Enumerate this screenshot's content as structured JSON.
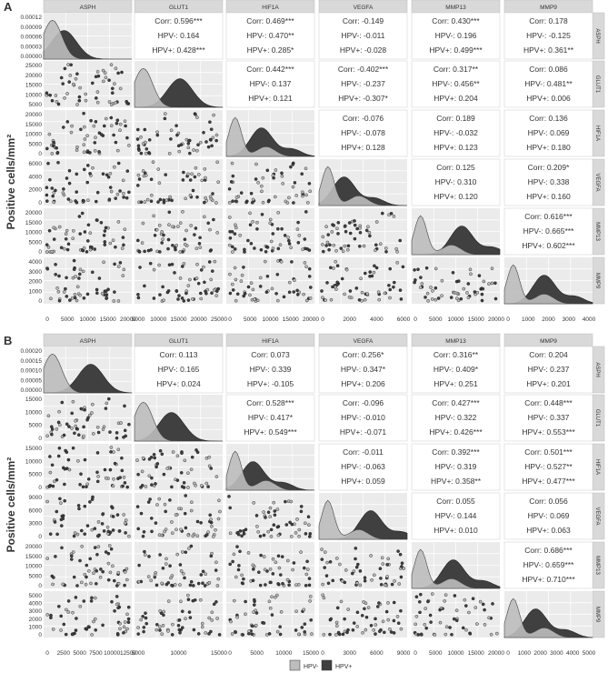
{
  "figure": {
    "ylabel": "Positive cells/mm²",
    "legend": [
      {
        "label": "HPV-",
        "color": "#bdbdbd"
      },
      {
        "label": "HPV+",
        "color": "#404040"
      }
    ]
  },
  "chart_data": [
    {
      "type": "pair_matrix",
      "panel_label": "A",
      "variables": [
        "ASPH",
        "GLUT1",
        "HIF1A",
        "VEGFA",
        "MMP13",
        "MMP9"
      ],
      "x_ticks": [
        [
          "0",
          "5000",
          "10000",
          "15000",
          "20000"
        ],
        [
          "5000",
          "10000",
          "15000",
          "20000",
          "25000"
        ],
        [
          "0",
          "5000",
          "10000",
          "15000",
          "20000"
        ],
        [
          "0",
          "2000",
          "4000",
          "6000"
        ],
        [
          "0",
          "5000",
          "10000",
          "15000",
          "20000"
        ],
        [
          "0",
          "1000",
          "2000",
          "3000",
          "4000"
        ]
      ],
      "y_ticks": [
        [
          "0.00000",
          "0.00003",
          "0.00006",
          "0.00009",
          "0.00012"
        ],
        [
          "5000",
          "10000",
          "15000",
          "20000",
          "25000"
        ],
        [
          "0",
          "5000",
          "10000",
          "15000",
          "20000"
        ],
        [
          "0",
          "2000",
          "4000",
          "6000"
        ],
        [
          "0",
          "5000",
          "10000",
          "15000",
          "20000"
        ],
        [
          "0",
          "1000",
          "2000",
          "3000",
          "4000"
        ]
      ],
      "correlations": [
        {
          "row": 0,
          "col": 1,
          "corr": "Corr: 0.596***",
          "neg": "HPV-: 0.164",
          "pos": "HPV+: 0.428***"
        },
        {
          "row": 0,
          "col": 2,
          "corr": "Corr: 0.469***",
          "neg": "HPV-: 0.470**",
          "pos": "HPV+: 0.285*"
        },
        {
          "row": 0,
          "col": 3,
          "corr": "Corr: -0.149",
          "neg": "HPV-: -0.011",
          "pos": "HPV+: -0.028"
        },
        {
          "row": 0,
          "col": 4,
          "corr": "Corr: 0.430***",
          "neg": "HPV-: 0.196",
          "pos": "HPV+: 0.499***"
        },
        {
          "row": 0,
          "col": 5,
          "corr": "Corr: 0.178",
          "neg": "HPV-: -0.125",
          "pos": "HPV+: 0.361**"
        },
        {
          "row": 1,
          "col": 2,
          "corr": "Corr: 0.442***",
          "neg": "HPV-: 0.137",
          "pos": "HPV+: 0.121"
        },
        {
          "row": 1,
          "col": 3,
          "corr": "Corr: -0.402***",
          "neg": "HPV-: -0.237",
          "pos": "HPV+: -0.307*"
        },
        {
          "row": 1,
          "col": 4,
          "corr": "Corr: 0.317**",
          "neg": "HPV-: 0.456**",
          "pos": "HPV+: 0.204"
        },
        {
          "row": 1,
          "col": 5,
          "corr": "Corr: 0.086",
          "neg": "HPV-: 0.481**",
          "pos": "HPV+: 0.006"
        },
        {
          "row": 2,
          "col": 3,
          "corr": "Corr: -0.076",
          "neg": "HPV-: -0.078",
          "pos": "HPV+: 0.128"
        },
        {
          "row": 2,
          "col": 4,
          "corr": "Corr: 0.189",
          "neg": "HPV-: -0.032",
          "pos": "HPV+: 0.123"
        },
        {
          "row": 2,
          "col": 5,
          "corr": "Corr: 0.136",
          "neg": "HPV-: 0.069",
          "pos": "HPV+: 0.180"
        },
        {
          "row": 3,
          "col": 4,
          "corr": "Corr: 0.125",
          "neg": "HPV-: 0.310",
          "pos": "HPV+: 0.120"
        },
        {
          "row": 3,
          "col": 5,
          "corr": "Corr: 0.209*",
          "neg": "HPV-: 0.338",
          "pos": "HPV+: 0.160"
        },
        {
          "row": 4,
          "col": 5,
          "corr": "Corr: 0.616***",
          "neg": "HPV-: 0.665***",
          "pos": "HPV+: 0.602***"
        }
      ]
    },
    {
      "type": "pair_matrix",
      "panel_label": "B",
      "variables": [
        "ASPH",
        "GLUT1",
        "HIF1A",
        "VEGFA",
        "MMP13",
        "MMP9"
      ],
      "x_ticks": [
        [
          "0",
          "2500",
          "5000",
          "7500",
          "10000",
          "12500"
        ],
        [
          "5000",
          "10000",
          "15000"
        ],
        [
          "0",
          "5000",
          "10000",
          "15000"
        ],
        [
          "0",
          "3000",
          "6000",
          "9000"
        ],
        [
          "0",
          "5000",
          "10000",
          "15000",
          "20000"
        ],
        [
          "0",
          "1000",
          "2000",
          "3000",
          "4000",
          "5000"
        ]
      ],
      "y_ticks": [
        [
          "0.00000",
          "0.00005",
          "0.00010",
          "0.00015",
          "0.00020"
        ],
        [
          "0",
          "5000",
          "10000",
          "15000"
        ],
        [
          "0",
          "5000",
          "10000",
          "15000"
        ],
        [
          "0",
          "3000",
          "6000",
          "9000"
        ],
        [
          "0",
          "5000",
          "10000",
          "15000",
          "20000"
        ],
        [
          "0",
          "1000",
          "2000",
          "3000",
          "4000",
          "5000"
        ]
      ],
      "correlations": [
        {
          "row": 0,
          "col": 1,
          "corr": "Corr: 0.113",
          "neg": "HPV-: 0.165",
          "pos": "HPV+: 0.024"
        },
        {
          "row": 0,
          "col": 2,
          "corr": "Corr: 0.073",
          "neg": "HPV-: 0.339",
          "pos": "HPV+: -0.105"
        },
        {
          "row": 0,
          "col": 3,
          "corr": "Corr: 0.256*",
          "neg": "HPV-: 0.347*",
          "pos": "HPV+: 0.206"
        },
        {
          "row": 0,
          "col": 4,
          "corr": "Corr: 0.316**",
          "neg": "HPV-: 0.409*",
          "pos": "HPV+: 0.251"
        },
        {
          "row": 0,
          "col": 5,
          "corr": "Corr: 0.204",
          "neg": "HPV-: 0.237",
          "pos": "HPV+: 0.201"
        },
        {
          "row": 1,
          "col": 2,
          "corr": "Corr: 0.528***",
          "neg": "HPV-: 0.417*",
          "pos": "HPV+: 0.549***"
        },
        {
          "row": 1,
          "col": 3,
          "corr": "Corr: -0.096",
          "neg": "HPV-: -0.010",
          "pos": "HPV+: -0.071"
        },
        {
          "row": 1,
          "col": 4,
          "corr": "Corr: 0.427***",
          "neg": "HPV-: 0.322",
          "pos": "HPV+: 0.426***"
        },
        {
          "row": 1,
          "col": 5,
          "corr": "Corr: 0.448***",
          "neg": "HPV-: 0.337",
          "pos": "HPV+: 0.553***"
        },
        {
          "row": 2,
          "col": 3,
          "corr": "Corr: -0.011",
          "neg": "HPV-: -0.063",
          "pos": "HPV+: 0.059"
        },
        {
          "row": 2,
          "col": 4,
          "corr": "Corr: 0.392***",
          "neg": "HPV-: 0.319",
          "pos": "HPV+: 0.358**"
        },
        {
          "row": 2,
          "col": 5,
          "corr": "Corr: 0.501***",
          "neg": "HPV-: 0.527**",
          "pos": "HPV+: 0.477***"
        },
        {
          "row": 3,
          "col": 4,
          "corr": "Corr: 0.055",
          "neg": "HPV-: 0.144",
          "pos": "HPV+: 0.010"
        },
        {
          "row": 3,
          "col": 5,
          "corr": "Corr: 0.056",
          "neg": "HPV-: 0.069",
          "pos": "HPV+: 0.063"
        },
        {
          "row": 4,
          "col": 5,
          "corr": "Corr: 0.686***",
          "neg": "HPV-: 0.659***",
          "pos": "HPV+: 0.710***"
        }
      ]
    }
  ]
}
